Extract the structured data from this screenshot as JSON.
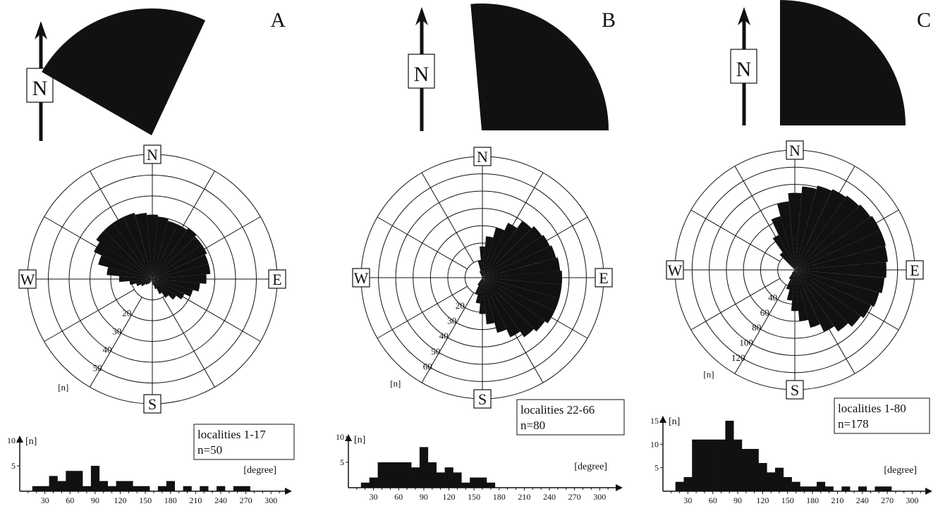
{
  "panels": [
    {
      "letter": "A",
      "legend": {
        "line1": "localities 1-17",
        "line2": "n=50"
      },
      "orientation_sector": {
        "from_deg": 300,
        "to_deg": 25
      },
      "rose": {
        "ring_values": [
          10,
          20,
          30,
          40,
          50,
          60
        ],
        "ring_labels": [
          "20",
          "30",
          "40",
          "50"
        ],
        "max": 60,
        "unit_label": "[n]",
        "petal_start_deg": 185,
        "petal_step_deg": 10,
        "petals": [
          1,
          1,
          2,
          3,
          4,
          6,
          8,
          11,
          16,
          22,
          27,
          31,
          33,
          33,
          33,
          33,
          32,
          31,
          30,
          29,
          29,
          30,
          29,
          29,
          28,
          28,
          26,
          23,
          20,
          17,
          14,
          11,
          8,
          5,
          3,
          2
        ]
      },
      "histogram": {
        "x_start": 15,
        "x_step": 10,
        "x_max": 320,
        "y_max": 10,
        "y_ticks": [
          5,
          10
        ],
        "x_ticks": [
          30,
          60,
          90,
          120,
          150,
          180,
          210,
          240,
          270,
          300
        ],
        "values": [
          1,
          1,
          3,
          2,
          4,
          4,
          1,
          5,
          2,
          1,
          2,
          2,
          1,
          1,
          0,
          1,
          2,
          0,
          1,
          0,
          1,
          0,
          1,
          0,
          1,
          1
        ],
        "y_label": "[n]",
        "x_label": "[degree]"
      }
    },
    {
      "letter": "B",
      "legend": {
        "line1": "localities 22-66",
        "line2": "n=80"
      },
      "orientation_sector": {
        "from_deg": 355,
        "to_deg": 90
      },
      "rose": {
        "ring_values": [
          10,
          20,
          30,
          40,
          50,
          60,
          70
        ],
        "ring_labels": [
          "20",
          "30",
          "40",
          "50",
          "60"
        ],
        "max": 70,
        "unit_label": "[n]",
        "petal_start_deg": 335,
        "petal_step_deg": 10,
        "petals": [
          4,
          10,
          18,
          24,
          30,
          35,
          40,
          42,
          43,
          44,
          45,
          46,
          46,
          46,
          46,
          44,
          42,
          38,
          33,
          27,
          21,
          15,
          10,
          5
        ]
      },
      "histogram": {
        "x_start": 15,
        "x_step": 10,
        "x_max": 320,
        "y_max": 10,
        "y_ticks": [
          5,
          10
        ],
        "x_ticks": [
          30,
          60,
          90,
          120,
          150,
          180,
          210,
          240,
          270,
          300
        ],
        "values": [
          1,
          2,
          5,
          5,
          5,
          5,
          4,
          8,
          5,
          3,
          4,
          3,
          1,
          2,
          2,
          1
        ],
        "y_label": "[n]",
        "x_label": "[degree]"
      }
    },
    {
      "letter": "C",
      "legend": {
        "line1": "localities 1-80",
        "line2": "n=178"
      },
      "orientation_sector": {
        "from_deg": 0,
        "to_deg": 90
      },
      "rose": {
        "ring_values": [
          20,
          40,
          60,
          80,
          100,
          120,
          140
        ],
        "ring_labels": [
          "40",
          "60",
          "80",
          "100",
          "120"
        ],
        "max": 140,
        "unit_label": "[n]",
        "petal_start_deg": 315,
        "petal_step_deg": 10,
        "petals": [
          25,
          45,
          65,
          80,
          90,
          98,
          102,
          104,
          106,
          108,
          110,
          110,
          109,
          107,
          105,
          102,
          98,
          94,
          88,
          80,
          70,
          60,
          48,
          36,
          24,
          12,
          5
        ]
      },
      "histogram": {
        "x_start": 15,
        "x_step": 10,
        "x_max": 320,
        "y_max": 15,
        "y_ticks": [
          5,
          10,
          15
        ],
        "x_ticks": [
          30,
          60,
          90,
          120,
          150,
          180,
          210,
          240,
          270,
          300
        ],
        "values": [
          2,
          3,
          11,
          11,
          11,
          11,
          15,
          11,
          9,
          9,
          6,
          4,
          5,
          3,
          2,
          1,
          1,
          2,
          1,
          0,
          1,
          0,
          1,
          0,
          1,
          1
        ],
        "y_label": "[n]",
        "x_label": "[degree]"
      }
    }
  ],
  "compass": {
    "north": "N",
    "east": "E",
    "south": "S",
    "west": "W"
  }
}
